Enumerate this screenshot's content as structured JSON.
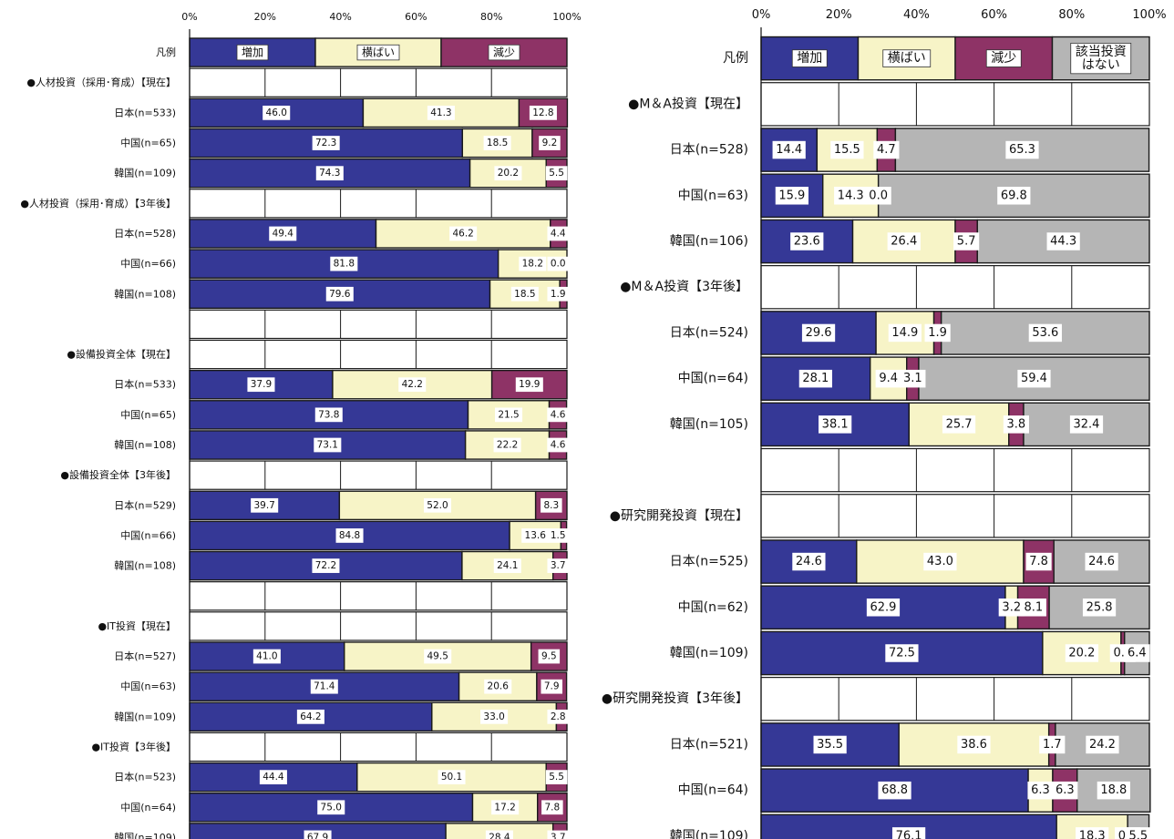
{
  "chart_data": [
    {
      "type": "bar",
      "stacked": true,
      "orientation": "horizontal",
      "x_ticks": [
        "0%",
        "20%",
        "40%",
        "60%",
        "80%",
        "100%"
      ],
      "legend_label": "凡例",
      "legend": [
        {
          "name": "増加",
          "color": "#353896"
        },
        {
          "name": "横ばい",
          "color": "#f7f4c7"
        },
        {
          "name": "減少",
          "color": "#8e3366"
        }
      ],
      "rows": [
        {
          "kind": "header",
          "label": "●人材投資（採用･育成）【現在】"
        },
        {
          "kind": "bar",
          "label": "日本(n=533)",
          "values": [
            46.0,
            41.3,
            12.8
          ]
        },
        {
          "kind": "bar",
          "label": "中国(n=65)",
          "values": [
            72.3,
            18.5,
            9.2
          ]
        },
        {
          "kind": "bar",
          "label": "韓国(n=109)",
          "values": [
            74.3,
            20.2,
            5.5
          ]
        },
        {
          "kind": "header",
          "label": "●人材投資（採用･育成）【3年後】"
        },
        {
          "kind": "bar",
          "label": "日本(n=528)",
          "values": [
            49.4,
            46.2,
            4.4
          ]
        },
        {
          "kind": "bar",
          "label": "中国(n=66)",
          "values": [
            81.8,
            18.2,
            0.0
          ]
        },
        {
          "kind": "bar",
          "label": "韓国(n=108)",
          "values": [
            79.6,
            18.5,
            1.9
          ]
        },
        {
          "kind": "blank",
          "label": ""
        },
        {
          "kind": "header",
          "label": "●設備投資全体【現在】"
        },
        {
          "kind": "bar",
          "label": "日本(n=533)",
          "values": [
            37.9,
            42.2,
            19.9
          ]
        },
        {
          "kind": "bar",
          "label": "中国(n=65)",
          "values": [
            73.8,
            21.5,
            4.6
          ]
        },
        {
          "kind": "bar",
          "label": "韓国(n=108)",
          "values": [
            73.1,
            22.2,
            4.6
          ]
        },
        {
          "kind": "header",
          "label": "●設備投資全体【3年後】"
        },
        {
          "kind": "bar",
          "label": "日本(n=529)",
          "values": [
            39.7,
            52.0,
            8.3
          ]
        },
        {
          "kind": "bar",
          "label": "中国(n=66)",
          "values": [
            84.8,
            13.6,
            1.5
          ]
        },
        {
          "kind": "bar",
          "label": "韓国(n=108)",
          "values": [
            72.2,
            24.1,
            3.7
          ]
        },
        {
          "kind": "blank",
          "label": ""
        },
        {
          "kind": "header",
          "label": "●IT投資【現在】"
        },
        {
          "kind": "bar",
          "label": "日本(n=527)",
          "values": [
            41.0,
            49.5,
            9.5
          ]
        },
        {
          "kind": "bar",
          "label": "中国(n=63)",
          "values": [
            71.4,
            20.6,
            7.9
          ]
        },
        {
          "kind": "bar",
          "label": "韓国(n=109)",
          "values": [
            64.2,
            33.0,
            2.8
          ]
        },
        {
          "kind": "header",
          "label": "●IT投資【3年後】"
        },
        {
          "kind": "bar",
          "label": "日本(n=523)",
          "values": [
            44.4,
            50.1,
            5.5
          ]
        },
        {
          "kind": "bar",
          "label": "中国(n=64)",
          "values": [
            75.0,
            17.2,
            7.8
          ]
        },
        {
          "kind": "bar",
          "label": "韓国(n=109)",
          "values": [
            67.9,
            28.4,
            3.7
          ]
        }
      ]
    },
    {
      "type": "bar",
      "stacked": true,
      "orientation": "horizontal",
      "x_ticks": [
        "0%",
        "20%",
        "40%",
        "60%",
        "80%",
        "100%"
      ],
      "legend_label": "凡例",
      "legend": [
        {
          "name": "増加",
          "color": "#353896"
        },
        {
          "name": "横ばい",
          "color": "#f7f4c7"
        },
        {
          "name": "減少",
          "color": "#8e3366"
        },
        {
          "name": "該当投資\nはない",
          "color": "#b5b5b5"
        }
      ],
      "rows": [
        {
          "kind": "header",
          "label": "●M＆A投資【現在】"
        },
        {
          "kind": "bar",
          "label": "日本(n=528)",
          "values": [
            14.4,
            15.5,
            4.7,
            65.3
          ]
        },
        {
          "kind": "bar",
          "label": "中国(n=63)",
          "values": [
            15.9,
            14.3,
            0.0,
            69.8
          ]
        },
        {
          "kind": "bar",
          "label": "韓国(n=106)",
          "values": [
            23.6,
            26.4,
            5.7,
            44.3
          ]
        },
        {
          "kind": "header",
          "label": "●M＆A投資【3年後】"
        },
        {
          "kind": "bar",
          "label": "日本(n=524)",
          "values": [
            29.6,
            14.9,
            1.9,
            53.6
          ]
        },
        {
          "kind": "bar",
          "label": "中国(n=64)",
          "values": [
            28.1,
            9.4,
            3.1,
            59.4
          ]
        },
        {
          "kind": "bar",
          "label": "韓国(n=105)",
          "values": [
            38.1,
            25.7,
            3.8,
            32.4
          ]
        },
        {
          "kind": "blank",
          "label": ""
        },
        {
          "kind": "header",
          "label": "●研究開発投資【現在】"
        },
        {
          "kind": "bar",
          "label": "日本(n=525)",
          "values": [
            24.6,
            43.0,
            7.8,
            24.6
          ]
        },
        {
          "kind": "bar",
          "label": "中国(n=62)",
          "values": [
            62.9,
            3.2,
            8.1,
            25.8
          ]
        },
        {
          "kind": "bar",
          "label": "韓国(n=109)",
          "values": [
            72.5,
            20.2,
            0.9,
            6.4
          ]
        },
        {
          "kind": "header",
          "label": "●研究開発投資【3年後】"
        },
        {
          "kind": "bar",
          "label": "日本(n=521)",
          "values": [
            35.5,
            38.6,
            1.7,
            24.2
          ]
        },
        {
          "kind": "bar",
          "label": "中国(n=64)",
          "values": [
            68.8,
            6.3,
            6.3,
            18.8
          ]
        },
        {
          "kind": "bar",
          "label": "韓国(n=109)",
          "values": [
            76.1,
            18.3,
            0.0,
            5.5
          ]
        }
      ]
    }
  ]
}
